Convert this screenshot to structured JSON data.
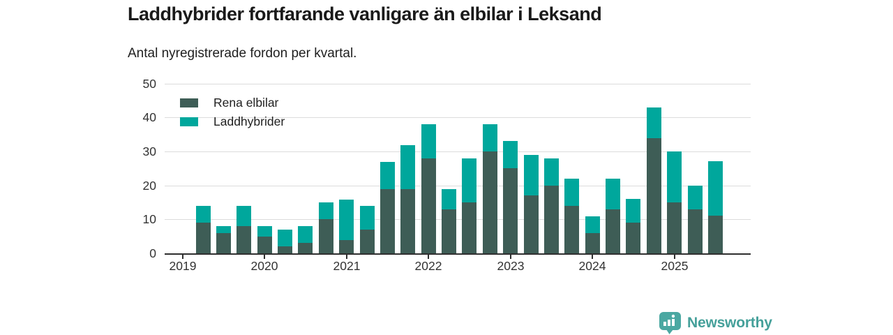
{
  "header": {
    "title": "Laddhybrider fortfarande vanligare än elbilar i Leksand",
    "subtitle": "Antal nyregistrerade fordon per kvartal."
  },
  "footer": {
    "brand": "Newsworthy",
    "brand_color": "#45a09a",
    "logo_icon": "bar-chart-pin-icon",
    "logo_icon_color": "#4ba8a2"
  },
  "colors": {
    "rena_elbilar": "#3e5d56",
    "laddhybrider": "#00a79c",
    "gridline": "#dcdcdc",
    "axis": "#2f2f2f",
    "text": "#1f1f1f"
  },
  "chart_data": {
    "type": "bar",
    "stacked": true,
    "title": "Laddhybrider fortfarande vanligare än elbilar i Leksand",
    "subtitle": "Antal nyregistrerade fordon per kvartal.",
    "xlabel": "",
    "ylabel": "",
    "ylim": [
      0,
      50
    ],
    "y_ticks": [
      0,
      10,
      20,
      30,
      40,
      50
    ],
    "grid": "horizontal",
    "legend_position": "top-left",
    "categories": [
      "2019 Q1",
      "2019 Q2",
      "2019 Q3",
      "2019 Q4",
      "2020 Q1",
      "2020 Q2",
      "2020 Q3",
      "2020 Q4",
      "2021 Q1",
      "2021 Q2",
      "2021 Q3",
      "2021 Q4",
      "2022 Q1",
      "2022 Q2",
      "2022 Q3",
      "2022 Q4",
      "2023 Q1",
      "2023 Q2",
      "2023 Q3",
      "2023 Q4",
      "2024 Q1",
      "2024 Q2",
      "2024 Q3",
      "2024 Q4",
      "2025 Q1",
      "2025 Q2",
      "2025 Q3"
    ],
    "x_tick_labels": [
      "2019",
      "2020",
      "2021",
      "2022",
      "2023",
      "2024",
      "2025"
    ],
    "x_tick_category_indices": [
      0,
      4,
      8,
      12,
      16,
      20,
      24
    ],
    "series": [
      {
        "name": "Rena elbilar",
        "color": "#3e5d56",
        "values": [
          0,
          9,
          6,
          8,
          5,
          2,
          3,
          10,
          4,
          7,
          19,
          19,
          28,
          13,
          15,
          30,
          25,
          17,
          20,
          14,
          6,
          13,
          9,
          34,
          15,
          13,
          11
        ]
      },
      {
        "name": "Laddhybrider",
        "color": "#00a79c",
        "values": [
          0,
          5,
          2,
          6,
          3,
          5,
          5,
          5,
          12,
          7,
          8,
          13,
          10,
          6,
          13,
          8,
          8,
          12,
          8,
          8,
          5,
          9,
          7,
          9,
          15,
          7,
          16
        ]
      }
    ]
  }
}
